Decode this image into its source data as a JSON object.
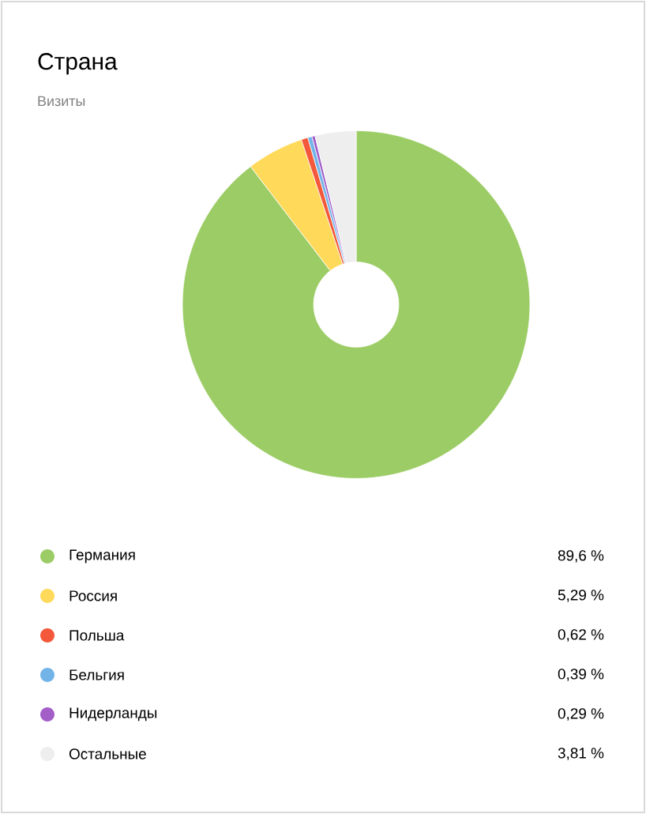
{
  "chart_data": {
    "type": "donut",
    "title": "Страна",
    "subtitle": "Визиты",
    "categories": [
      "Германия",
      "Россия",
      "Польша",
      "Бельгия",
      "Нидерланды",
      "Остальные"
    ],
    "values": [
      89.6,
      5.29,
      0.62,
      0.39,
      0.29,
      3.81
    ],
    "value_labels": [
      "89,6 %",
      "5,29 %",
      "0,62 %",
      "0,39 %",
      "0,29 %",
      "3,81 %"
    ],
    "colors": [
      "#9ccc65",
      "#ffd95a",
      "#f4583a",
      "#72b4e8",
      "#a35ec8",
      "#eeeeee"
    ],
    "legend": "bottom"
  }
}
